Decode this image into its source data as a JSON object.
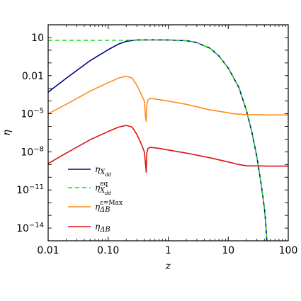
{
  "chart_data": {
    "type": "line",
    "xlabel": "z",
    "ylabel": "η",
    "x_scale": "log",
    "y_scale": "log",
    "xlim": [
      0.01,
      100
    ],
    "ylim": [
      1e-15,
      100
    ],
    "x_ticks": [
      {
        "value": 0.01,
        "label": "0.01"
      },
      {
        "value": 0.1,
        "label": "0.10"
      },
      {
        "value": 1,
        "label": "1"
      },
      {
        "value": 10,
        "label": "10"
      },
      {
        "value": 100,
        "label": "100"
      }
    ],
    "y_ticks": [
      {
        "value": 10,
        "base": "10",
        "exp": ""
      },
      {
        "value": 0.01,
        "base": "0.01",
        "exp": ""
      },
      {
        "value": 1e-05,
        "base": "10",
        "exp": "−5"
      },
      {
        "value": 1e-08,
        "base": "10",
        "exp": "−8"
      },
      {
        "value": 1e-11,
        "base": "10",
        "exp": "−11"
      },
      {
        "value": 1e-14,
        "base": "10",
        "exp": "−14"
      }
    ],
    "legend_position": "lower-left",
    "grid": false,
    "series": [
      {
        "name": "η_{X_dd}",
        "legend": {
          "main": "η",
          "sub": "X",
          "subsub": "dd",
          "sup": ""
        },
        "color": "#00008b",
        "dash": "solid",
        "points": [
          [
            0.01,
            0.0005
          ],
          [
            0.02,
            0.0062
          ],
          [
            0.05,
            0.15
          ],
          [
            0.1,
            1.1
          ],
          [
            0.15,
            3.1
          ],
          [
            0.2,
            5.0
          ],
          [
            0.3,
            6.4
          ],
          [
            0.5,
            6.5
          ],
          [
            1,
            6.4
          ],
          [
            2,
            5.6
          ],
          [
            3,
            4.0
          ],
          [
            5,
            1.4
          ],
          [
            7,
            0.35
          ],
          [
            10,
            0.04
          ],
          [
            15,
            0.0012
          ],
          [
            20,
            2e-05
          ],
          [
            25,
            3e-07
          ],
          [
            30,
            4e-09
          ],
          [
            35,
            4e-11
          ],
          [
            40,
            4e-13
          ],
          [
            42,
            3e-14
          ],
          [
            44,
            1e-15
          ]
        ]
      },
      {
        "name": "η^{eq}_{X_dd}",
        "legend": {
          "main": "η",
          "sub": "X",
          "subsub": "dd",
          "sup": "eq"
        },
        "color": "#22dd22",
        "dash": "dashed",
        "points": [
          [
            0.01,
            6.0
          ],
          [
            0.1,
            6.0
          ],
          [
            0.2,
            6.1
          ],
          [
            0.3,
            6.4
          ],
          [
            0.5,
            6.5
          ],
          [
            1,
            6.4
          ],
          [
            2,
            5.6
          ],
          [
            3,
            4.0
          ],
          [
            5,
            1.4
          ],
          [
            7,
            0.35
          ],
          [
            10,
            0.04
          ],
          [
            15,
            0.0012
          ],
          [
            20,
            2e-05
          ],
          [
            25,
            3e-07
          ],
          [
            30,
            4e-09
          ],
          [
            35,
            4e-11
          ],
          [
            40,
            4e-13
          ],
          [
            42,
            3e-14
          ],
          [
            44,
            1e-15
          ]
        ]
      },
      {
        "name": "η^{ε=Max}_{ΔB}",
        "legend": {
          "main": "η",
          "sub": "ΔB",
          "subsub": "",
          "sup": "ε=Max"
        },
        "color": "#ff8c1a",
        "dash": "solid",
        "points": [
          [
            0.01,
            1e-05
          ],
          [
            0.02,
            5.5e-05
          ],
          [
            0.05,
            0.0006
          ],
          [
            0.1,
            0.0028
          ],
          [
            0.15,
            0.0065
          ],
          [
            0.2,
            0.009
          ],
          [
            0.25,
            0.0065
          ],
          [
            0.3,
            0.0018
          ],
          [
            0.35,
            0.0004
          ],
          [
            0.4,
            0.0001
          ],
          [
            0.42,
            5e-06
          ],
          [
            0.43,
            2.5e-06
          ],
          [
            0.44,
            5e-05
          ],
          [
            0.46,
            0.00012
          ],
          [
            0.5,
            0.00016
          ],
          [
            0.7,
            0.00013
          ],
          [
            1,
            0.0001
          ],
          [
            2,
            5.5e-05
          ],
          [
            5,
            2e-05
          ],
          [
            10,
            1.2e-05
          ],
          [
            12,
            1e-05
          ],
          [
            20,
            8.5e-06
          ],
          [
            50,
            8e-06
          ],
          [
            100,
            8e-06
          ]
        ]
      },
      {
        "name": "η_{ΔB}",
        "legend": {
          "main": "η",
          "sub": "ΔB",
          "subsub": "",
          "sup": ""
        },
        "color": "#dd1111",
        "dash": "solid",
        "points": [
          [
            0.01,
            1.2e-09
          ],
          [
            0.02,
            8e-09
          ],
          [
            0.05,
            9e-08
          ],
          [
            0.1,
            4e-07
          ],
          [
            0.15,
            9e-07
          ],
          [
            0.2,
            1.2e-06
          ],
          [
            0.25,
            9e-07
          ],
          [
            0.3,
            2.4e-07
          ],
          [
            0.35,
            5e-08
          ],
          [
            0.4,
            1e-08
          ],
          [
            0.42,
            1e-09
          ],
          [
            0.43,
            2.5e-10
          ],
          [
            0.44,
            8e-09
          ],
          [
            0.46,
            1.8e-08
          ],
          [
            0.5,
            2.3e-08
          ],
          [
            0.7,
            1.9e-08
          ],
          [
            1,
            1.4e-08
          ],
          [
            2,
            8e-09
          ],
          [
            5,
            3.4e-09
          ],
          [
            10,
            1.6e-09
          ],
          [
            15,
            1e-09
          ],
          [
            20,
            8e-10
          ],
          [
            50,
            7.5e-10
          ],
          [
            100,
            7.5e-10
          ]
        ]
      }
    ]
  }
}
